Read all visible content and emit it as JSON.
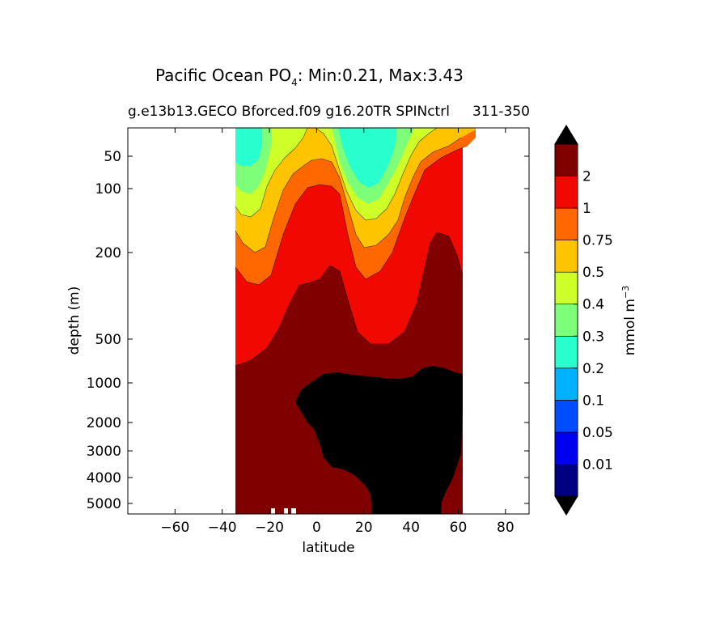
{
  "chart_data": {
    "type": "heatmap",
    "title_main": "Pacific Ocean PO",
    "title_sub": "4",
    "title_rest": ": Min:0.21, Max:3.43",
    "subtitle_left": "g.e13b13.GECO Bforced.f09 g16.20TR SPINctrl",
    "subtitle_right": "311-350",
    "xlabel": "latitude",
    "ylabel": "depth (m)",
    "xlim": [
      -80,
      90
    ],
    "ylim": [
      0,
      5500
    ],
    "xticks": [
      -60,
      -40,
      -20,
      0,
      20,
      40,
      60,
      80
    ],
    "xtick_labels": [
      "−60",
      "−40",
      "−20",
      "0",
      "20",
      "40",
      "60",
      "80"
    ],
    "yticks": [
      {
        "value": 50,
        "label": "50"
      },
      {
        "value": 100,
        "label": "100"
      },
      {
        "value": 200,
        "label": "200"
      },
      {
        "value": 500,
        "label": "500"
      },
      {
        "value": 1000,
        "label": "1000"
      },
      {
        "value": 2000,
        "label": "2000"
      },
      {
        "value": 3000,
        "label": "3000"
      },
      {
        "value": 4000,
        "label": "4000"
      },
      {
        "value": 5000,
        "label": "5000"
      }
    ],
    "colorbar": {
      "label": "mmol m",
      "label_exp": "−3",
      "levels": [
        "0.01",
        "0.05",
        "0.1",
        "0.2",
        "0.3",
        "0.4",
        "0.5",
        "0.75",
        "1",
        "2"
      ],
      "colors": [
        "#000080",
        "#0000f1",
        "#004dff",
        "#00b1ff",
        "#29ffce",
        "#7dff7a",
        "#ceff29",
        "#ffc400",
        "#ff6800",
        "#f10800",
        "#800000"
      ],
      "extend_low_color": "#000000",
      "extend_high_color": "#000000"
    }
  }
}
